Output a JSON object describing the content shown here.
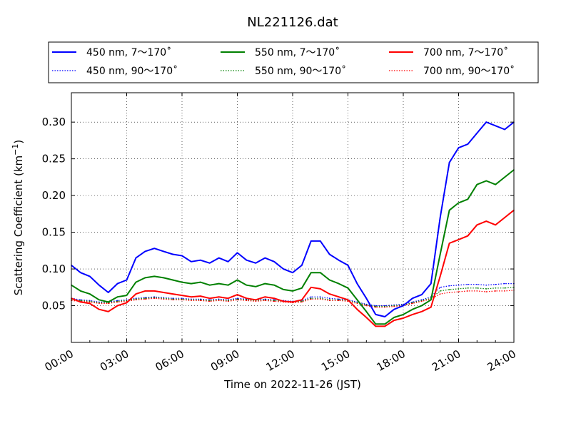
{
  "chart_data": {
    "type": "line",
    "title": "NL221126.dat",
    "xlabel": "Time on 2022-11-26 (JST)",
    "ylabel_main": "Scattering Coefficient (km",
    "ylabel_sup": "−1",
    "ylabel_close": ")",
    "xlim": [
      0,
      24
    ],
    "ylim": [
      0.0,
      0.34
    ],
    "grid": true,
    "legend_position": "top",
    "x_ticks": [
      0,
      3,
      6,
      9,
      12,
      15,
      18,
      21,
      24
    ],
    "x_tick_labels": [
      "00:00",
      "03:00",
      "06:00",
      "09:00",
      "12:00",
      "15:00",
      "18:00",
      "21:00",
      "24:00"
    ],
    "y_ticks": [
      0.05,
      0.1,
      0.15,
      0.2,
      0.25,
      0.3
    ],
    "y_tick_labels": [
      "0.05",
      "0.10",
      "0.15",
      "0.20",
      "0.25",
      "0.30"
    ],
    "x": [
      0.0,
      0.5,
      1.0,
      1.5,
      2.0,
      2.5,
      3.0,
      3.5,
      4.0,
      4.5,
      5.0,
      5.5,
      6.0,
      6.5,
      7.0,
      7.5,
      8.0,
      8.5,
      9.0,
      9.5,
      10.0,
      10.5,
      11.0,
      11.5,
      12.0,
      12.5,
      13.0,
      13.5,
      14.0,
      14.5,
      15.0,
      15.5,
      16.0,
      16.5,
      17.0,
      17.5,
      18.0,
      18.5,
      19.0,
      19.5,
      20.0,
      20.5,
      21.0,
      21.5,
      22.0,
      22.5,
      23.0,
      23.5,
      24.0
    ],
    "series": [
      {
        "name": "450 nm, 7～170˚",
        "color": "#0000ff",
        "style": "solid",
        "values": [
          0.105,
          0.095,
          0.09,
          0.078,
          0.068,
          0.08,
          0.085,
          0.115,
          0.124,
          0.128,
          0.124,
          0.12,
          0.118,
          0.11,
          0.112,
          0.108,
          0.115,
          0.11,
          0.122,
          0.112,
          0.108,
          0.115,
          0.11,
          0.1,
          0.095,
          0.105,
          0.138,
          0.138,
          0.12,
          0.112,
          0.105,
          0.08,
          0.06,
          0.038,
          0.035,
          0.045,
          0.05,
          0.06,
          0.065,
          0.08,
          0.17,
          0.245,
          0.265,
          0.27,
          0.285,
          0.3,
          0.295,
          0.29,
          0.3
        ]
      },
      {
        "name": "450 nm, 90～170˚",
        "color": "#0000ff",
        "style": "dotted",
        "values": [
          0.06,
          0.058,
          0.057,
          0.055,
          0.055,
          0.057,
          0.058,
          0.06,
          0.061,
          0.062,
          0.061,
          0.06,
          0.06,
          0.059,
          0.059,
          0.058,
          0.059,
          0.058,
          0.06,
          0.059,
          0.058,
          0.059,
          0.058,
          0.057,
          0.056,
          0.057,
          0.062,
          0.062,
          0.06,
          0.059,
          0.058,
          0.055,
          0.052,
          0.05,
          0.05,
          0.051,
          0.052,
          0.055,
          0.058,
          0.062,
          0.075,
          0.077,
          0.078,
          0.079,
          0.079,
          0.078,
          0.079,
          0.08,
          0.08
        ]
      },
      {
        "name": "550 nm, 7～170˚",
        "color": "#008000",
        "style": "solid",
        "values": [
          0.078,
          0.07,
          0.066,
          0.058,
          0.055,
          0.062,
          0.064,
          0.082,
          0.088,
          0.09,
          0.088,
          0.085,
          0.082,
          0.08,
          0.082,
          0.078,
          0.08,
          0.078,
          0.085,
          0.078,
          0.076,
          0.08,
          0.078,
          0.072,
          0.07,
          0.074,
          0.095,
          0.095,
          0.085,
          0.08,
          0.074,
          0.058,
          0.042,
          0.025,
          0.025,
          0.034,
          0.038,
          0.045,
          0.05,
          0.058,
          0.12,
          0.18,
          0.19,
          0.195,
          0.215,
          0.22,
          0.215,
          0.225,
          0.235
        ]
      },
      {
        "name": "550 nm, 90～170˚",
        "color": "#008000",
        "style": "dotted",
        "values": [
          0.058,
          0.057,
          0.056,
          0.054,
          0.054,
          0.056,
          0.057,
          0.059,
          0.06,
          0.061,
          0.06,
          0.059,
          0.059,
          0.058,
          0.058,
          0.057,
          0.058,
          0.057,
          0.059,
          0.058,
          0.057,
          0.058,
          0.057,
          0.056,
          0.055,
          0.056,
          0.06,
          0.06,
          0.058,
          0.058,
          0.057,
          0.054,
          0.051,
          0.049,
          0.049,
          0.05,
          0.051,
          0.054,
          0.057,
          0.06,
          0.07,
          0.072,
          0.073,
          0.074,
          0.074,
          0.073,
          0.074,
          0.074,
          0.075
        ]
      },
      {
        "name": "700 nm, 7～170˚",
        "color": "#ff0000",
        "style": "solid",
        "values": [
          0.06,
          0.055,
          0.053,
          0.045,
          0.042,
          0.05,
          0.054,
          0.066,
          0.07,
          0.07,
          0.068,
          0.066,
          0.064,
          0.062,
          0.063,
          0.06,
          0.062,
          0.06,
          0.065,
          0.06,
          0.058,
          0.062,
          0.06,
          0.056,
          0.055,
          0.058,
          0.075,
          0.073,
          0.066,
          0.062,
          0.058,
          0.045,
          0.034,
          0.022,
          0.022,
          0.03,
          0.033,
          0.038,
          0.042,
          0.048,
          0.09,
          0.135,
          0.14,
          0.145,
          0.16,
          0.165,
          0.16,
          0.17,
          0.18
        ]
      },
      {
        "name": "700 nm, 90～170˚",
        "color": "#ff0000",
        "style": "dotted",
        "values": [
          0.057,
          0.056,
          0.055,
          0.053,
          0.053,
          0.055,
          0.056,
          0.058,
          0.059,
          0.06,
          0.059,
          0.058,
          0.058,
          0.057,
          0.057,
          0.056,
          0.057,
          0.056,
          0.058,
          0.057,
          0.056,
          0.057,
          0.056,
          0.055,
          0.054,
          0.055,
          0.059,
          0.059,
          0.057,
          0.057,
          0.056,
          0.053,
          0.05,
          0.048,
          0.048,
          0.049,
          0.05,
          0.053,
          0.056,
          0.059,
          0.066,
          0.068,
          0.069,
          0.07,
          0.07,
          0.069,
          0.07,
          0.07,
          0.071
        ]
      }
    ]
  }
}
